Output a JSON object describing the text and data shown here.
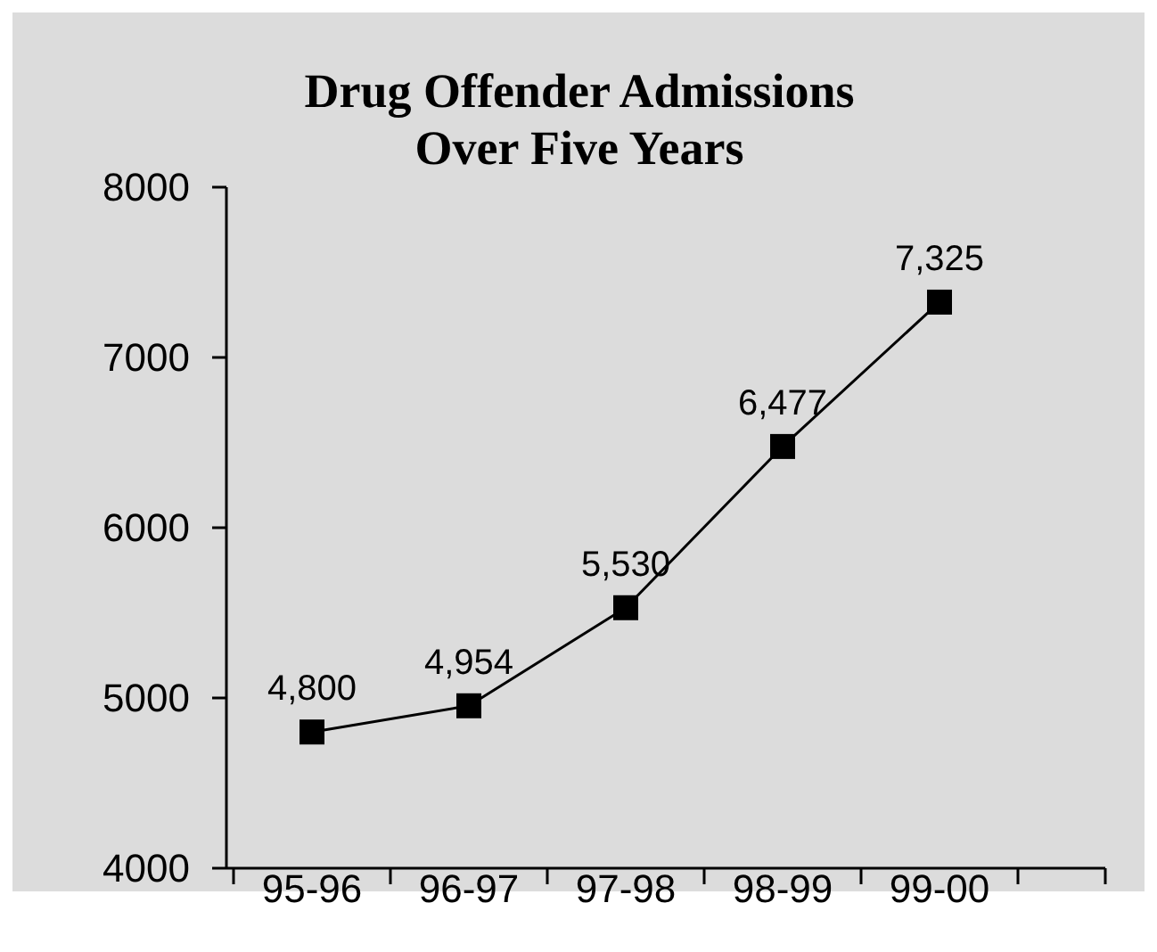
{
  "chart_data": {
    "type": "line",
    "title": "Drug Offender Admissions\nOver Five Years",
    "categories": [
      "95-96",
      "96-97",
      "97-98",
      "98-99",
      "99-00"
    ],
    "values": [
      4800,
      4954,
      5530,
      6477,
      7325
    ],
    "value_labels": [
      "4,800",
      "4,954",
      "5,530",
      "6,477",
      "7,325"
    ],
    "color": "#000000",
    "marker": "square",
    "line_style": "solid",
    "ylim": [
      4000,
      8000
    ],
    "yticks": [
      4000,
      5000,
      6000,
      7000,
      8000
    ],
    "grid": false
  }
}
